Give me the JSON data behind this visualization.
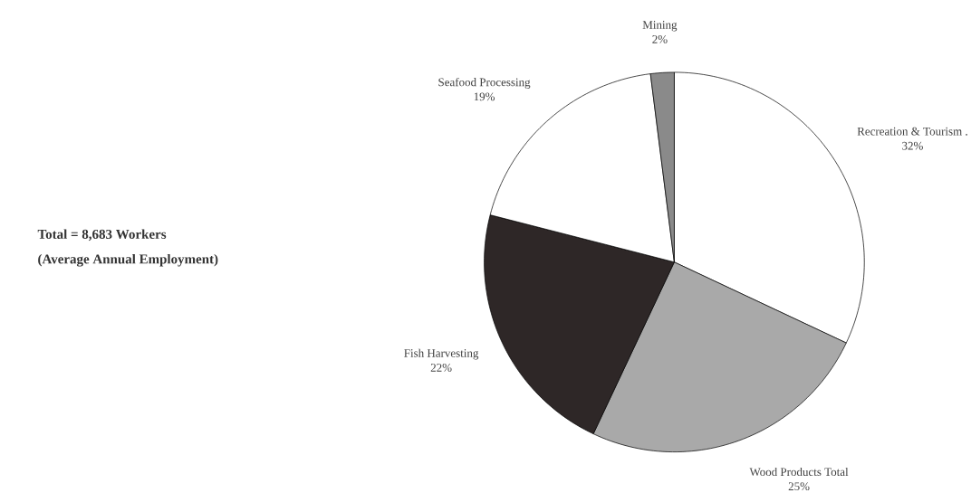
{
  "chart_data": {
    "type": "pie",
    "categories": [
      "Recreation & Tourism .",
      "Wood Products Total",
      "Fish Harvesting",
      "Seafood Processing",
      "Mining"
    ],
    "values": [
      32,
      25,
      22,
      19,
      2
    ],
    "colors": [
      "#ffffff",
      "#a9a9a9",
      "#2e2727",
      "#ffffff",
      "#8a8a8a"
    ],
    "value_labels": [
      "32%",
      "25%",
      "22%",
      "19%",
      "2%"
    ],
    "annotations": [
      "Total = 8,683 Workers",
      "(Average Annual Employment)"
    ]
  }
}
